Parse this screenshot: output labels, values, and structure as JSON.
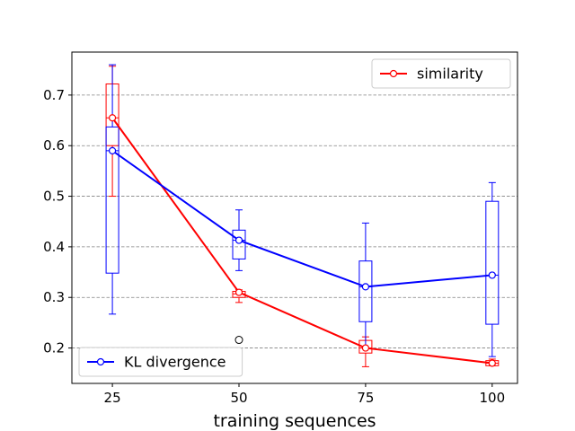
{
  "chart_data": {
    "type": "line",
    "title": "",
    "xlabel": "training sequences",
    "ylabel": "",
    "x": [
      25,
      50,
      75,
      100
    ],
    "xlim": [
      17,
      105
    ],
    "ylim": [
      0.13,
      0.785
    ],
    "yticks": [
      0.2,
      0.3,
      0.4,
      0.5,
      0.6,
      0.7
    ],
    "ytick_labels": [
      "0.2",
      "0.3",
      "0.4",
      "0.5",
      "0.6",
      "0.7"
    ],
    "xtick_labels": [
      "25",
      "50",
      "75",
      "100"
    ],
    "grid": "horizontal dashed",
    "series": [
      {
        "name": "similarity",
        "color": "#ff0000",
        "values": [
          0.655,
          0.31,
          0.2,
          0.17
        ],
        "legend_position": "top-right",
        "box": [
          {
            "x": 25,
            "whislo": 0.5,
            "q1": 0.6,
            "med": 0.655,
            "q3": 0.722,
            "whishi": 0.757,
            "fliers": []
          },
          {
            "x": 50,
            "whislo": 0.29,
            "q1": 0.3,
            "med": 0.307,
            "q3": 0.312,
            "whishi": 0.315,
            "fliers": []
          },
          {
            "x": 75,
            "whislo": 0.163,
            "q1": 0.19,
            "med": 0.2,
            "q3": 0.215,
            "whishi": 0.222,
            "fliers": []
          },
          {
            "x": 100,
            "whislo": 0.165,
            "q1": 0.165,
            "med": 0.17,
            "q3": 0.175,
            "whishi": 0.178,
            "fliers": []
          }
        ]
      },
      {
        "name": "KL divergence",
        "color": "#0000ff",
        "values": [
          0.59,
          0.413,
          0.321,
          0.344
        ],
        "legend_position": "bottom-left",
        "box": [
          {
            "x": 25,
            "whislo": 0.267,
            "q1": 0.348,
            "med": 0.59,
            "q3": 0.637,
            "whishi": 0.76,
            "fliers": []
          },
          {
            "x": 50,
            "whislo": 0.353,
            "q1": 0.376,
            "med": 0.413,
            "q3": 0.433,
            "whishi": 0.473,
            "fliers": [
              0.216
            ]
          },
          {
            "x": 75,
            "whislo": 0.2,
            "q1": 0.252,
            "med": 0.321,
            "q3": 0.372,
            "whishi": 0.447,
            "fliers": []
          },
          {
            "x": 100,
            "whislo": 0.183,
            "q1": 0.247,
            "med": 0.344,
            "q3": 0.49,
            "whishi": 0.527,
            "fliers": []
          }
        ]
      }
    ]
  }
}
